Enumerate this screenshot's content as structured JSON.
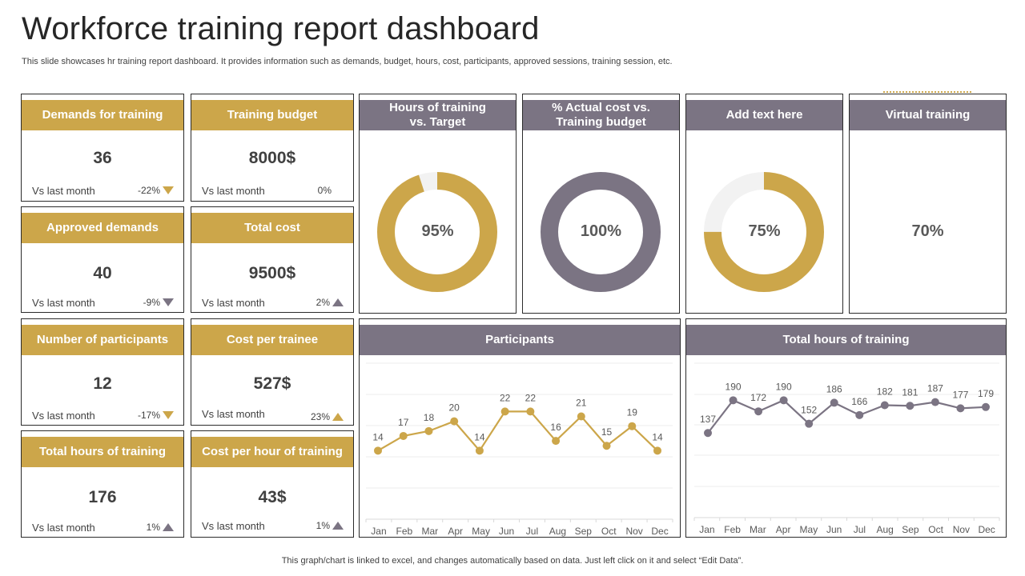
{
  "page": {
    "title": "Workforce training report dashboard",
    "subtitle": "This slide showcases hr training report dashboard. It provides information such as demands, budget, hours, cost, participants, approved sessions, training session, etc.",
    "footer": "This graph/chart is linked to excel,  and changes automatically based on data. Just left click on it and select “Edit Data”."
  },
  "colors": {
    "gold": "#cca64a",
    "grey": "#7b7483",
    "track": "#f2f2f2"
  },
  "kpis": [
    {
      "title": "Demands for training",
      "value": "36",
      "vs": "Vs last month",
      "change": "-22%",
      "trend": "down-gold"
    },
    {
      "title": "Training budget",
      "value": "8000$",
      "vs": "Vs last month",
      "change": "0%",
      "trend": "none"
    },
    {
      "title": "Approved demands",
      "value": "40",
      "vs": "Vs last month",
      "change": "-9%",
      "trend": "down-grey"
    },
    {
      "title": "Total cost",
      "value": "9500$",
      "vs": "Vs last month",
      "change": "2%",
      "trend": "up-grey"
    },
    {
      "title": "Number of participants",
      "value": "12",
      "vs": "Vs last month",
      "change": "-17%",
      "trend": "down-gold"
    },
    {
      "title": "Cost per trainee",
      "value": "527$",
      "vs": "Vs last month",
      "change": "23%",
      "trend": "up-gold"
    },
    {
      "title": "Total hours of training",
      "value": "176",
      "vs": "Vs last month",
      "change": "1%",
      "trend": "up-grey"
    },
    {
      "title": "Cost per hour of training",
      "value": "43$",
      "vs": "Vs last month",
      "change": "1%",
      "trend": "up-grey"
    }
  ],
  "donuts": [
    {
      "title": "Hours of training vs. Target",
      "title_line1": "Hours of training",
      "title_line2": "vs. Target",
      "label": "95%",
      "percent": 95,
      "color": "#cca64a"
    },
    {
      "title": "% Actual cost vs. Training budget",
      "title_line1": "% Actual cost vs.",
      "title_line2": "Training budget",
      "label": "100%",
      "percent": 100,
      "color": "#7b7483"
    },
    {
      "title": "Add text here",
      "title_line1": "Add text here",
      "title_line2": "",
      "label": "75%",
      "percent": 75,
      "color": "#cca64a"
    },
    {
      "title": "Virtual training",
      "title_line1": "Virtual training",
      "title_line2": "",
      "label": "70%",
      "percent": 70,
      "color": "none"
    }
  ],
  "chart_data": [
    {
      "type": "line",
      "title": "Participants",
      "categories": [
        "Jan",
        "Feb",
        "Mar",
        "Apr",
        "May",
        "Jun",
        "Jul",
        "Aug",
        "Sep",
        "Oct",
        "Nov",
        "Dec"
      ],
      "values": [
        14,
        17,
        18,
        20,
        14,
        22,
        22,
        16,
        21,
        15,
        19,
        14
      ],
      "ylim": [
        0,
        25
      ],
      "color": "#cca64a",
      "grid": true
    },
    {
      "type": "line",
      "title": "Total hours of training",
      "categories": [
        "Jan",
        "Feb",
        "Mar",
        "Apr",
        "May",
        "Jun",
        "Jul",
        "Aug",
        "Sep",
        "Oct",
        "Nov",
        "Dec"
      ],
      "values": [
        137,
        190,
        172,
        190,
        152,
        186,
        166,
        182,
        181,
        187,
        177,
        179
      ],
      "ylim": [
        0,
        250
      ],
      "color": "#7b7483",
      "grid": true
    }
  ]
}
